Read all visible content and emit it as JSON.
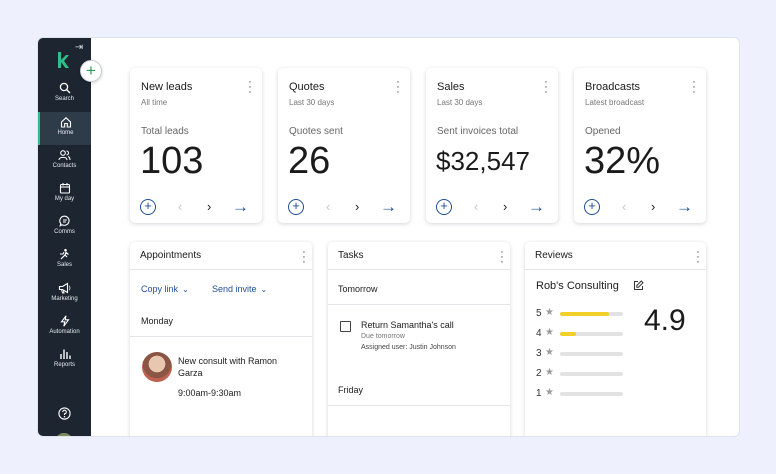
{
  "sidebar": {
    "items": [
      {
        "label": "Search",
        "icon": "search-icon"
      },
      {
        "label": "Home",
        "icon": "home-icon",
        "active": true
      },
      {
        "label": "Contacts",
        "icon": "contacts-icon"
      },
      {
        "label": "My day",
        "icon": "calendar-icon"
      },
      {
        "label": "Comms",
        "icon": "chat-icon"
      },
      {
        "label": "Sales",
        "icon": "sales-icon"
      },
      {
        "label": "Marketing",
        "icon": "megaphone-icon"
      },
      {
        "label": "Automation",
        "icon": "lightning-icon"
      },
      {
        "label": "Reports",
        "icon": "bar-chart-icon"
      }
    ],
    "accent": "#2fbf8a"
  },
  "stats": [
    {
      "title": "New leads",
      "period": "All time",
      "label": "Total leads",
      "value": "103"
    },
    {
      "title": "Quotes",
      "period": "Last 30 days",
      "label": "Quotes sent",
      "value": "26"
    },
    {
      "title": "Sales",
      "period": "Last 30 days",
      "label": "Sent invoices total",
      "value": "$32,547"
    },
    {
      "title": "Broadcasts",
      "period": "Latest broadcast",
      "label": "Opened",
      "value": "32%"
    }
  ],
  "appointments": {
    "title": "Appointments",
    "copy_link": "Copy link",
    "send_invite": "Send invite",
    "day": "Monday",
    "item": {
      "title": "New consult with Ramon Garza",
      "time": "9:00am-9:30am"
    }
  },
  "tasks": {
    "title": "Tasks",
    "group1": "Tomorrow",
    "item": {
      "title": "Return Samantha's call",
      "due": "Due tomorrow",
      "assigned": "Assigned user: Justin Johnson"
    },
    "group2": "Friday"
  },
  "reviews": {
    "title": "Reviews",
    "business": "Rob's Consulting",
    "average": "4.9",
    "rows": [
      {
        "stars": "5",
        "fill": 0.78
      },
      {
        "stars": "4",
        "fill": 0.26
      },
      {
        "stars": "3",
        "fill": 0
      },
      {
        "stars": "2",
        "fill": 0
      },
      {
        "stars": "1",
        "fill": 0
      }
    ]
  },
  "colors": {
    "primary": "#1f4f96",
    "star_fill": "#f3cf2a",
    "sidebar_bg": "#1c2530"
  }
}
